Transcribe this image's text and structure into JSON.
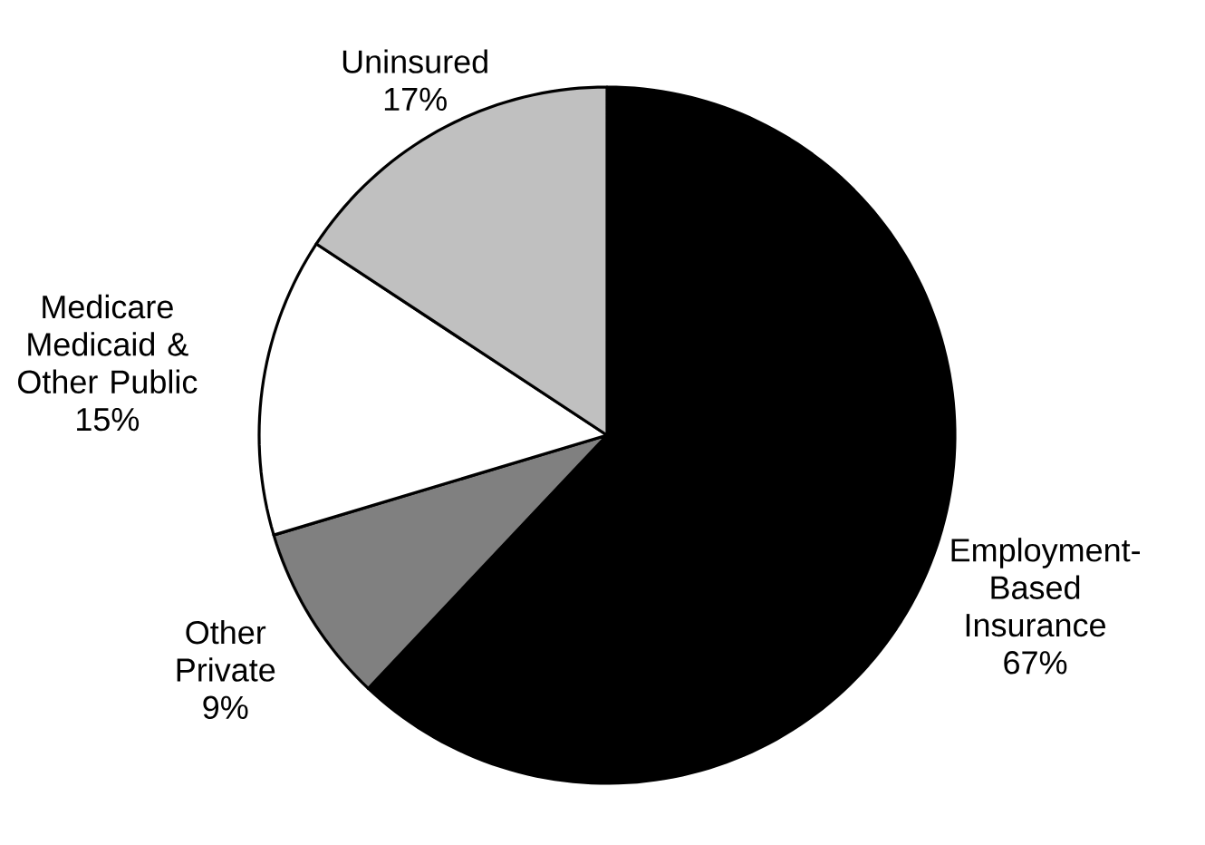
{
  "chart_data": {
    "type": "pie",
    "categories": [
      "Employment-Based Insurance",
      "Other Private",
      "Medicare Medicaid & Other Public",
      "Uninsured"
    ],
    "values": [
      67,
      9,
      15,
      17
    ],
    "value_labels": [
      "67%",
      "9%",
      "15%",
      "17%"
    ],
    "colors": [
      "#000000",
      "#808080",
      "#ffffff",
      "#c0c0c0"
    ]
  }
}
